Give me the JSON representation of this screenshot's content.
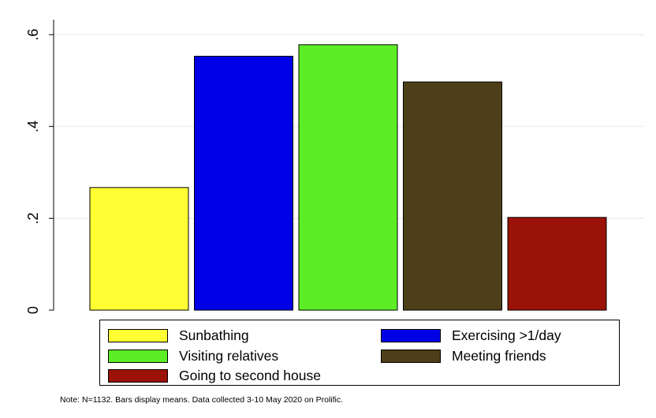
{
  "chart_data": {
    "type": "bar",
    "ylim": [
      0,
      0.6
    ],
    "yticks": [
      0,
      0.2,
      0.4,
      0.6
    ],
    "ytick_labels": [
      "0",
      ".2",
      ".4",
      ".6"
    ],
    "grid": true,
    "legend_position": "bottom",
    "series": [
      {
        "name": "Sunbathing",
        "value": 0.267,
        "color": "#ffff33"
      },
      {
        "name": "Exercising >1/day",
        "value": 0.553,
        "color": "#0000e6"
      },
      {
        "name": "Visiting relatives",
        "value": 0.578,
        "color": "#5ced25"
      },
      {
        "name": "Meeting friends",
        "value": 0.497,
        "color": "#4d3f19"
      },
      {
        "name": "Going to second house",
        "value": 0.202,
        "color": "#9b1208"
      }
    ]
  },
  "note": "Note: N=1132. Bars display means. Data collected 3-10 May 2020 on Prolific."
}
